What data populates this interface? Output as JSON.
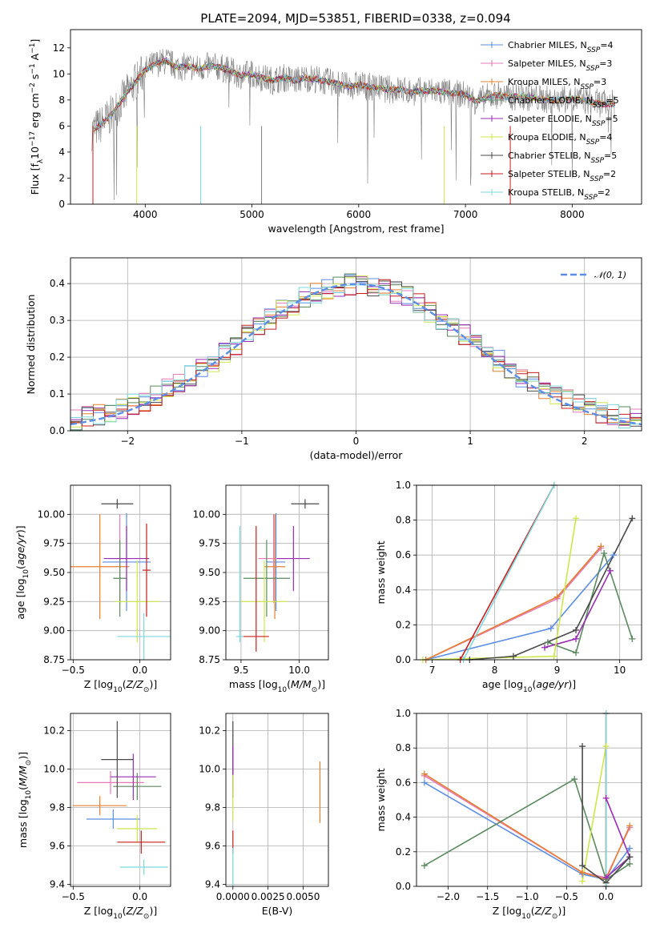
{
  "figure_title": "PLATE=2094, MJD=53851, FIBERID=0338, z=0.094",
  "colors": {
    "Chabrier MILES": "#5b8ee6",
    "Salpeter MILES": "#e879b9",
    "Kroupa MILES": "#e6802f",
    "Chabrier ELODIE": "#5a8a5e",
    "Salpeter ELODIE": "#9a2bb5",
    "Kroupa ELODIE": "#cde84a",
    "Chabrier STELIB": "#4a4a4a",
    "Salpeter STELIB": "#c81e1e",
    "Kroupa STELIB": "#7dd8dc",
    "data": "#808080",
    "normal": "#5b8ee6"
  },
  "chart_data": [
    {
      "id": "spectrum",
      "type": "line",
      "xlabel": "wavelength [Angstrom, rest frame]",
      "ylabel": "Flux [f",
      "ylabel_parts": [
        "Flux [f",
        "λ",
        "10",
        "-17",
        " erg cm",
        "-2",
        " s",
        "-1",
        " A",
        "-1",
        "]"
      ],
      "xlim": [
        3300,
        8650
      ],
      "ylim": [
        0,
        13.4
      ],
      "xticks": [
        4000,
        5000,
        6000,
        7000,
        8000
      ],
      "yticks": [
        0,
        2,
        4,
        6,
        8,
        10,
        12
      ],
      "grid": false,
      "legend_position": "top-right",
      "legend": [
        {
          "name": "Chabrier MILES",
          "nssp": "4"
        },
        {
          "name": "Salpeter MILES",
          "nssp": "3"
        },
        {
          "name": "Kroupa MILES",
          "nssp": "3"
        },
        {
          "name": "Chabrier ELODIE",
          "nssp": "5"
        },
        {
          "name": "Salpeter ELODIE",
          "nssp": "5"
        },
        {
          "name": "Kroupa ELODIE",
          "nssp": "4"
        },
        {
          "name": "Chabrier STELIB",
          "nssp": "5"
        },
        {
          "name": "Salpeter STELIB",
          "nssp": "2"
        },
        {
          "name": "Kroupa STELIB",
          "nssp": "2"
        }
      ],
      "nssp_label": "N",
      "nssp_sub": "SSP",
      "continuum": [
        [
          3500,
          5.6
        ],
        [
          3600,
          6.2
        ],
        [
          3700,
          7.0
        ],
        [
          3800,
          8.2
        ],
        [
          3900,
          9.3
        ],
        [
          4000,
          10.3
        ],
        [
          4100,
          10.8
        ],
        [
          4200,
          11.0
        ],
        [
          4300,
          10.5
        ],
        [
          4400,
          10.6
        ],
        [
          4500,
          10.4
        ],
        [
          4600,
          10.6
        ],
        [
          4700,
          10.5
        ],
        [
          4800,
          10.2
        ],
        [
          4900,
          9.9
        ],
        [
          5000,
          10.0
        ],
        [
          5100,
          9.7
        ],
        [
          5200,
          9.5
        ],
        [
          5300,
          9.7
        ],
        [
          5400,
          9.5
        ],
        [
          5500,
          9.7
        ],
        [
          5600,
          9.6
        ],
        [
          5700,
          9.4
        ],
        [
          5800,
          9.3
        ],
        [
          5900,
          9.0
        ],
        [
          6000,
          9.2
        ],
        [
          6100,
          9.0
        ],
        [
          6200,
          8.9
        ],
        [
          6300,
          8.8
        ],
        [
          6400,
          8.8
        ],
        [
          6500,
          8.6
        ],
        [
          6600,
          8.7
        ],
        [
          6700,
          8.7
        ],
        [
          6800,
          8.6
        ],
        [
          6900,
          8.5
        ],
        [
          7000,
          8.4
        ],
        [
          7100,
          7.9
        ],
        [
          7200,
          8.2
        ],
        [
          7300,
          8.4
        ],
        [
          7400,
          8.2
        ],
        [
          7500,
          8.3
        ],
        [
          7600,
          8.2
        ],
        [
          7700,
          8.1
        ],
        [
          7800,
          8.0
        ],
        [
          7900,
          8.0
        ],
        [
          8000,
          8.1
        ],
        [
          8100,
          8.0
        ],
        [
          8200,
          7.8
        ],
        [
          8300,
          7.7
        ],
        [
          8400,
          7.7
        ]
      ]
    },
    {
      "id": "residuals",
      "type": "bar",
      "xlabel": "(data-model)/error",
      "ylabel": "Normed distribution",
      "xlim": [
        -2.5,
        2.5
      ],
      "ylim": [
        0,
        0.47
      ],
      "xticks": [
        -2,
        -1,
        0,
        1,
        2
      ],
      "yticks": [
        0.0,
        0.1,
        0.2,
        0.3,
        0.4
      ],
      "grid": true,
      "legend_position": "top-right",
      "legend": [
        {
          "name": "𝒩(0, 1)"
        }
      ],
      "bin_width": 0.1,
      "normal": {
        "mean": 0,
        "sigma": 1
      }
    },
    {
      "id": "age-vs-Z",
      "type": "scatter",
      "xlabel": "Z [log",
      "xlabel_parts": [
        "Z [log",
        "10",
        "(Z/Z",
        "⊙",
        ")]"
      ],
      "ylabel_parts": [
        "age  [log",
        "10",
        "(age/yr)]"
      ],
      "xlim": [
        -0.52,
        0.23
      ],
      "ylim": [
        8.75,
        10.25
      ],
      "xticks": [
        -0.5,
        0.0
      ],
      "yticks": [
        8.75,
        9.0,
        9.25,
        9.5,
        9.75,
        10.0
      ],
      "grid": true,
      "errorbars": [
        {
          "series": "Chabrier MILES",
          "x": -0.1,
          "y": 9.59,
          "xerr": 0.18,
          "yerr": 0.42
        },
        {
          "series": "Salpeter MILES",
          "x": -0.15,
          "y": 9.62,
          "xerr": 0.08,
          "yerr": 0.38
        },
        {
          "series": "Kroupa MILES",
          "x": -0.3,
          "y": 9.55,
          "xerr": 0.22,
          "yerr": 0.45
        },
        {
          "series": "Chabrier ELODIE",
          "x": -0.15,
          "y": 9.45,
          "xerr": 0.05,
          "yerr": 0.33
        },
        {
          "series": "Salpeter ELODIE",
          "x": -0.1,
          "y": 9.62,
          "xerr": 0.17,
          "yerr": 0.28
        },
        {
          "series": "Kroupa ELODIE",
          "x": -0.02,
          "y": 9.25,
          "xerr": 0.17,
          "yerr": 0.35
        },
        {
          "series": "Chabrier STELIB",
          "x": -0.17,
          "y": 10.09,
          "xerr": 0.12,
          "yerr": 0.04
        },
        {
          "series": "Salpeter STELIB",
          "x": 0.05,
          "y": 9.52,
          "xerr": 0.03,
          "yerr": 0.4
        },
        {
          "series": "Kroupa STELIB",
          "x": 0.03,
          "y": 8.95,
          "xerr": 0.2,
          "yerr": 0.2
        }
      ]
    },
    {
      "id": "age-vs-mass",
      "type": "scatter",
      "xlabel_parts": [
        "mass [log",
        "10",
        "(M/M",
        "⊙",
        ")]"
      ],
      "xlim": [
        9.37,
        10.25
      ],
      "ylim": [
        8.75,
        10.25
      ],
      "xticks": [
        9.5,
        10.0
      ],
      "yticks": [
        8.75,
        9.0,
        9.25,
        9.5,
        9.75,
        10.0
      ],
      "grid": true,
      "errorbars": [
        {
          "series": "Chabrier MILES",
          "x": 9.8,
          "y": 9.59,
          "xerr": 0.08,
          "yerr": 0.42
        },
        {
          "series": "Salpeter MILES",
          "x": 9.78,
          "y": 9.62,
          "xerr": 0.13,
          "yerr": 0.38
        },
        {
          "series": "Kroupa MILES",
          "x": 9.79,
          "y": 9.55,
          "xerr": 0.09,
          "yerr": 0.45
        },
        {
          "series": "Chabrier ELODIE",
          "x": 9.72,
          "y": 9.45,
          "xerr": 0.2,
          "yerr": 0.33
        },
        {
          "series": "Salpeter ELODIE",
          "x": 9.95,
          "y": 9.62,
          "xerr": 0.14,
          "yerr": 0.28
        },
        {
          "series": "Kroupa ELODIE",
          "x": 9.7,
          "y": 9.25,
          "xerr": 0.2,
          "yerr": 0.35
        },
        {
          "series": "Chabrier STELIB",
          "x": 10.05,
          "y": 10.09,
          "xerr": 0.12,
          "yerr": 0.04
        },
        {
          "series": "Salpeter STELIB",
          "x": 9.63,
          "y": 9.36,
          "xerr": 0.0,
          "yerr": 0.54
        },
        {
          "series": "Salpeter STELIB",
          "x": 9.63,
          "y": 8.95,
          "xerr": 0.11,
          "yerr": 0.0
        },
        {
          "series": "Kroupa STELIB",
          "x": 9.49,
          "y": 9.4,
          "xerr": 0.0,
          "yerr": 0.5
        },
        {
          "series": "Kroupa STELIB",
          "x": 9.49,
          "y": 8.95,
          "xerr": 0.03,
          "yerr": 0.0
        }
      ]
    },
    {
      "id": "mass-weight-vs-age",
      "type": "line",
      "xlabel_parts": [
        "age  [log",
        "10",
        "(age/yr)]"
      ],
      "ylabel": "mass weight",
      "xlim": [
        6.75,
        10.35
      ],
      "ylim": [
        0,
        1.0
      ],
      "xticks": [
        7,
        8,
        9,
        10
      ],
      "yticks": [
        0.0,
        0.2,
        0.4,
        0.6,
        0.8,
        1.0
      ],
      "grid": true,
      "series": [
        {
          "name": "Chabrier MILES",
          "points": [
            [
              6.9,
              0.0
            ],
            [
              8.9,
              0.18
            ],
            [
              9.9,
              0.6
            ]
          ]
        },
        {
          "name": "Salpeter MILES",
          "points": [
            [
              6.9,
              0.0
            ],
            [
              9.0,
              0.35
            ],
            [
              9.7,
              0.64
            ]
          ]
        },
        {
          "name": "Kroupa MILES",
          "points": [
            [
              6.9,
              0.0
            ],
            [
              9.0,
              0.36
            ],
            [
              9.7,
              0.65
            ]
          ]
        },
        {
          "name": "Chabrier ELODIE",
          "points": [
            [
              8.85,
              0.1
            ],
            [
              9.3,
              0.04
            ],
            [
              9.75,
              0.61
            ],
            [
              10.2,
              0.12
            ]
          ]
        },
        {
          "name": "Salpeter ELODIE",
          "points": [
            [
              8.8,
              0.07
            ],
            [
              9.3,
              0.12
            ],
            [
              9.85,
              0.51
            ]
          ]
        },
        {
          "name": "Kroupa ELODIE",
          "points": [
            [
              6.85,
              0.0
            ],
            [
              8.95,
              0.02
            ],
            [
              9.3,
              0.81
            ]
          ]
        },
        {
          "name": "Chabrier STELIB",
          "points": [
            [
              7.6,
              0.0
            ],
            [
              8.3,
              0.02
            ],
            [
              9.3,
              0.17
            ],
            [
              10.2,
              0.81
            ]
          ]
        },
        {
          "name": "Salpeter STELIB",
          "points": [
            [
              7.45,
              0.0
            ],
            [
              8.95,
              1.0
            ]
          ]
        },
        {
          "name": "Kroupa STELIB",
          "points": [
            [
              7.5,
              0.0
            ],
            [
              8.95,
              1.0
            ]
          ]
        }
      ]
    },
    {
      "id": "mass-vs-Z",
      "type": "scatter",
      "xlabel_parts": [
        "Z [log",
        "10",
        "(Z/Z",
        "⊙",
        ")]"
      ],
      "ylabel_parts": [
        "mass [log",
        "10",
        "(M/M",
        "⊙",
        ")]"
      ],
      "xlim": [
        -0.52,
        0.23
      ],
      "ylim": [
        9.39,
        10.29
      ],
      "xticks": [
        -0.5,
        0.0
      ],
      "yticks": [
        9.4,
        9.6,
        9.8,
        10.0,
        10.2
      ],
      "grid": true,
      "errorbars": [
        {
          "series": "Chabrier MILES",
          "x": -0.2,
          "y": 9.74,
          "xerr": 0.2,
          "yerr": 0.05
        },
        {
          "series": "Salpeter MILES",
          "x": -0.22,
          "y": 9.93,
          "xerr": 0.25,
          "yerr": 0.06
        },
        {
          "series": "Kroupa MILES",
          "x": -0.3,
          "y": 9.81,
          "xerr": 0.2,
          "yerr": 0.05
        },
        {
          "series": "Chabrier ELODIE",
          "x": -0.02,
          "y": 9.91,
          "xerr": 0.18,
          "yerr": 0.07
        },
        {
          "series": "Salpeter ELODIE",
          "x": -0.05,
          "y": 9.96,
          "xerr": 0.17,
          "yerr": 0.12
        },
        {
          "series": "Kroupa ELODIE",
          "x": -0.02,
          "y": 9.69,
          "xerr": 0.15,
          "yerr": 0.07
        },
        {
          "series": "Chabrier STELIB",
          "x": -0.17,
          "y": 10.05,
          "xerr": 0.12,
          "yerr": 0.2
        },
        {
          "series": "Salpeter STELIB",
          "x": 0.01,
          "y": 9.62,
          "xerr": 0.18,
          "yerr": 0.06
        },
        {
          "series": "Kroupa STELIB",
          "x": 0.03,
          "y": 9.49,
          "xerr": 0.18,
          "yerr": 0.04
        }
      ]
    },
    {
      "id": "mass-vs-ebv",
      "type": "scatter",
      "xlabel": "E(B-V)",
      "xlim": [
        -0.0005,
        0.0068
      ],
      "ylim": [
        9.39,
        10.29
      ],
      "xticks": [
        0.0,
        0.0025,
        0.005
      ],
      "xtick_labels": [
        "0.0000",
        "0.0025",
        "0.0050"
      ],
      "yticks": [
        9.4,
        9.6,
        9.8,
        10.0,
        10.2
      ],
      "grid": true,
      "errorbars": [
        {
          "series": "Chabrier STELIB",
          "x": 0.0,
          "y": 10.05,
          "xerr": 0,
          "yerr": 0.2
        },
        {
          "series": "Salpeter ELODIE",
          "x": 0.0,
          "y": 10.0,
          "xerr": 0,
          "yerr": 0.12
        },
        {
          "series": "Kroupa ELODIE",
          "x": 0.0,
          "y": 9.85,
          "xerr": 0,
          "yerr": 0.12
        },
        {
          "series": "Salpeter STELIB",
          "x": 0.0,
          "y": 9.62,
          "xerr": 0,
          "yerr": 0.06
        },
        {
          "series": "Kroupa STELIB",
          "x": 0.0,
          "y": 9.49,
          "xerr": 0,
          "yerr": 0.1
        },
        {
          "series": "Kroupa MILES",
          "x": 0.0062,
          "y": 9.88,
          "xerr": 0,
          "yerr": 0.16
        }
      ]
    },
    {
      "id": "mass-weight-vs-Z",
      "type": "line",
      "xlabel_parts": [
        "Z [log",
        "10",
        "(Z/Z",
        "⊙",
        ")]"
      ],
      "ylabel": "mass weight",
      "xlim": [
        -2.4,
        0.45
      ],
      "ylim": [
        0,
        1.0
      ],
      "xticks": [
        -2.0,
        -1.5,
        -1.0,
        -0.5,
        0.0
      ],
      "yticks": [
        0.0,
        0.2,
        0.4,
        0.6,
        0.8,
        1.0
      ],
      "grid": true,
      "series": [
        {
          "name": "Chabrier MILES",
          "points": [
            [
              -2.3,
              0.6
            ],
            [
              -0.3,
              0.07
            ],
            [
              0.0,
              0.04
            ],
            [
              0.3,
              0.22
            ]
          ]
        },
        {
          "name": "Salpeter MILES",
          "points": [
            [
              -2.3,
              0.64
            ],
            [
              -0.3,
              0.08
            ],
            [
              0.0,
              0.05
            ],
            [
              0.3,
              0.34
            ]
          ]
        },
        {
          "name": "Kroupa MILES",
          "points": [
            [
              -2.3,
              0.65
            ],
            [
              -0.3,
              0.08
            ],
            [
              0.0,
              0.04
            ],
            [
              0.3,
              0.35
            ]
          ]
        },
        {
          "name": "Chabrier ELODIE",
          "points": [
            [
              -2.3,
              0.12
            ],
            [
              -0.4,
              0.62
            ],
            [
              0.0,
              0.04
            ],
            [
              0.3,
              0.13
            ]
          ]
        },
        {
          "name": "Salpeter ELODIE",
          "points": [
            [
              0.0,
              0.51
            ],
            [
              0.3,
              0.17
            ],
            [
              0.0,
              0.05
            ]
          ]
        },
        {
          "name": "Kroupa ELODIE",
          "points": [
            [
              -0.3,
              0.03
            ],
            [
              0.0,
              0.81
            ],
            [
              0.0,
              0.02
            ]
          ]
        },
        {
          "name": "Chabrier STELIB",
          "points": [
            [
              -0.3,
              0.81
            ],
            [
              -0.3,
              0.12
            ],
            [
              0.0,
              0.02
            ],
            [
              0.3,
              0.17
            ]
          ]
        },
        {
          "name": "Salpeter STELIB",
          "points": [
            [
              0.0,
              0.0
            ],
            [
              0.0,
              1.0
            ]
          ]
        },
        {
          "name": "Kroupa STELIB",
          "points": [
            [
              0.0,
              0.0
            ],
            [
              0.0,
              1.0
            ]
          ]
        }
      ]
    }
  ]
}
